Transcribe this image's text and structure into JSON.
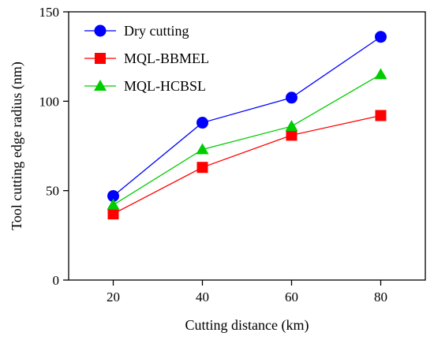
{
  "chart_data": {
    "type": "line",
    "title": "",
    "xlabel": "Cutting distance (km)",
    "ylabel": "Tool cutting edge radius (nm)",
    "x": [
      20,
      40,
      60,
      80
    ],
    "xticks": [
      20,
      40,
      60,
      80
    ],
    "yticks": [
      0,
      50,
      100,
      150
    ],
    "xlim": [
      10,
      90
    ],
    "ylim": [
      0,
      150
    ],
    "grid": false,
    "legend_position": "top-left",
    "series": [
      {
        "name": "Dry cutting",
        "values": [
          47,
          88,
          102,
          136
        ],
        "color": "#0000ff",
        "marker": "circle"
      },
      {
        "name": "MQL-BBMEL",
        "values": [
          37,
          63,
          81,
          92
        ],
        "color": "#ff0000",
        "marker": "square"
      },
      {
        "name": "MQL-HCBSL",
        "values": [
          42,
          73,
          86,
          115
        ],
        "color": "#00cc00",
        "marker": "triangle"
      }
    ]
  }
}
